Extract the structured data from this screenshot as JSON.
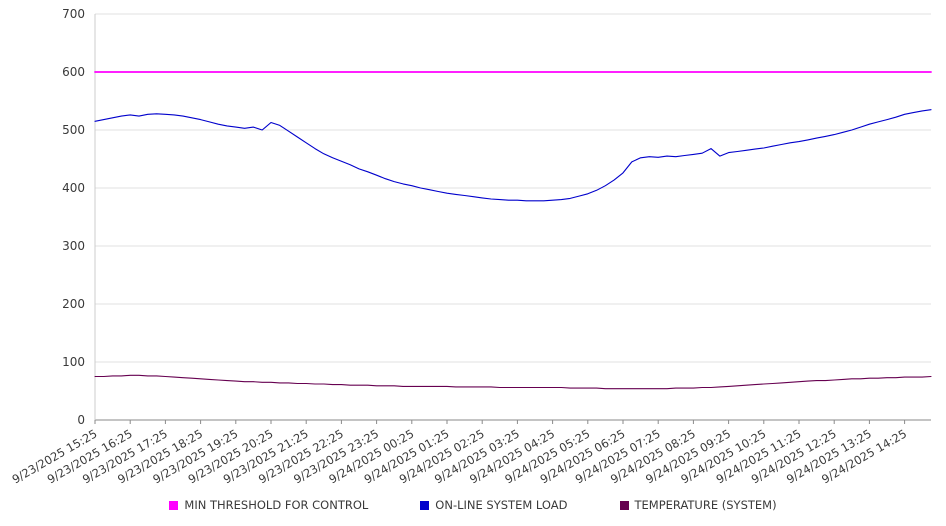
{
  "chart_data": {
    "type": "line",
    "title": "",
    "xlabel": "",
    "ylabel": "",
    "ylim": [
      0,
      700
    ],
    "yticks": [
      0,
      100,
      200,
      300,
      400,
      500,
      600,
      700
    ],
    "grid": true,
    "legend_position": "bottom",
    "n_points": 96,
    "label_every": 4,
    "x_labels": [
      "9/23/2025 15:25",
      "9/23/2025 16:25",
      "9/23/2025 17:25",
      "9/23/2025 18:25",
      "9/23/2025 19:25",
      "9/23/2025 20:25",
      "9/23/2025 21:25",
      "9/23/2025 22:25",
      "9/23/2025 23:25",
      "9/24/2025 00:25",
      "9/24/2025 01:25",
      "9/24/2025 02:25",
      "9/24/2025 03:25",
      "9/24/2025 04:25",
      "9/24/2025 05:25",
      "9/24/2025 06:25",
      "9/24/2025 07:25",
      "9/24/2025 08:25",
      "9/24/2025 09:25",
      "9/24/2025 10:25",
      "9/24/2025 11:25",
      "9/24/2025 12:25",
      "9/24/2025 13:25",
      "9/24/2025 14:25"
    ],
    "series": [
      {
        "name": "MIN THRESHOLD FOR CONTROL",
        "color": "#ff00ff",
        "width": 1.8,
        "constant": 600
      },
      {
        "name": "ON-LINE SYSTEM LOAD",
        "color": "#0000cc",
        "width": 1.1,
        "values": [
          515,
          518,
          521,
          524,
          526,
          524,
          527,
          528,
          527,
          526,
          524,
          521,
          518,
          514,
          510,
          507,
          505,
          503,
          505,
          500,
          513,
          508,
          498,
          488,
          478,
          468,
          459,
          452,
          446,
          440,
          433,
          428,
          422,
          416,
          411,
          407,
          404,
          400,
          397,
          394,
          391,
          389,
          387,
          385,
          383,
          381,
          380,
          379,
          379,
          378,
          378,
          378,
          379,
          380,
          382,
          386,
          390,
          396,
          404,
          414,
          426,
          445,
          452,
          454,
          453,
          455,
          454,
          456,
          458,
          460,
          468,
          455,
          461,
          463,
          465,
          467,
          469,
          472,
          475,
          478,
          480,
          483,
          486,
          489,
          492,
          496,
          500,
          505,
          510,
          514,
          518,
          522,
          527,
          530,
          533,
          535
        ]
      },
      {
        "name": "TEMPERATURE (SYSTEM)",
        "color": "#660050",
        "width": 1.1,
        "values": [
          75,
          75,
          76,
          76,
          77,
          77,
          76,
          76,
          75,
          74,
          73,
          72,
          71,
          70,
          69,
          68,
          67,
          66,
          66,
          65,
          65,
          64,
          64,
          63,
          63,
          62,
          62,
          61,
          61,
          60,
          60,
          60,
          59,
          59,
          59,
          58,
          58,
          58,
          58,
          58,
          58,
          57,
          57,
          57,
          57,
          57,
          56,
          56,
          56,
          56,
          56,
          56,
          56,
          56,
          55,
          55,
          55,
          55,
          54,
          54,
          54,
          54,
          54,
          54,
          54,
          54,
          55,
          55,
          55,
          56,
          56,
          57,
          58,
          59,
          60,
          61,
          62,
          63,
          64,
          65,
          66,
          67,
          68,
          68,
          69,
          70,
          71,
          71,
          72,
          72,
          73,
          73,
          74,
          74,
          74,
          75
        ]
      }
    ],
    "colors": {
      "grid": "#e2e2e2",
      "axis": "#8a8a8a",
      "tick_label": "#3a3a3a"
    }
  }
}
